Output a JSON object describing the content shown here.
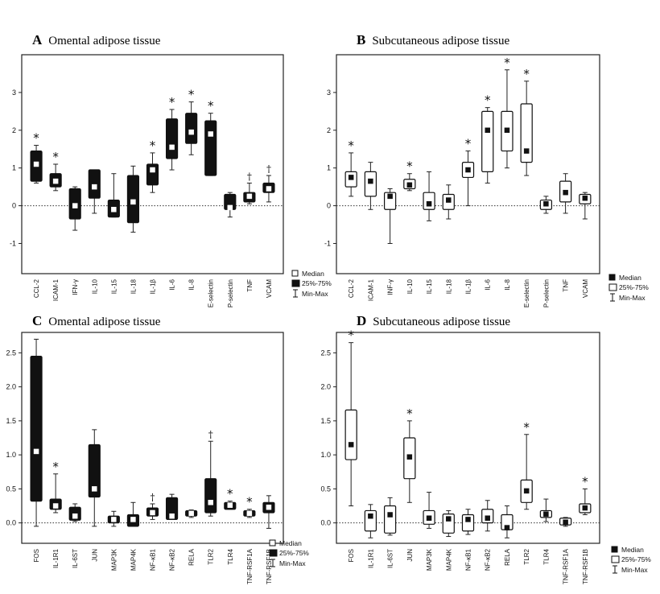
{
  "chart_data": [
    {
      "type": "box",
      "panel_label": "A",
      "title": "Omental adipose tissue",
      "y_ticks": [
        "-1",
        "0",
        "1",
        "2",
        "3"
      ],
      "ylim": [
        -1.8,
        4.0
      ],
      "reference_line": 0,
      "box_style": "filled",
      "legend": {
        "median": "Median",
        "box": "25%-75%",
        "whisker": "Min-Max",
        "position": "bottom-right"
      },
      "categories": [
        "CCL-2",
        "ICAM-1",
        "IFN-γ",
        "IL-10",
        "IL-15",
        "IL-18",
        "IL-1β",
        "IL-6",
        "IL-8",
        "E-selectin",
        "P-selectin",
        "TNF",
        "VCAM"
      ],
      "min": [
        0.6,
        0.4,
        -0.65,
        -0.2,
        -0.3,
        -0.7,
        0.35,
        0.95,
        1.35,
        0.8,
        -0.3,
        0.05,
        0.1
      ],
      "q1": [
        0.65,
        0.5,
        -0.35,
        0.2,
        -0.3,
        -0.45,
        0.55,
        1.25,
        1.65,
        0.8,
        -0.1,
        0.1,
        0.35
      ],
      "median": [
        1.1,
        0.65,
        0.0,
        0.5,
        -0.1,
        0.1,
        0.95,
        1.55,
        1.95,
        1.9,
        -0.05,
        0.25,
        0.45
      ],
      "q3": [
        1.45,
        0.85,
        0.45,
        0.95,
        0.15,
        0.8,
        1.1,
        2.3,
        2.45,
        2.25,
        0.3,
        0.35,
        0.6
      ],
      "max": [
        1.6,
        1.1,
        0.5,
        0.95,
        0.85,
        1.05,
        1.4,
        2.55,
        2.75,
        2.45,
        0.35,
        0.6,
        0.8
      ],
      "markers": [
        "*",
        "*",
        "",
        "",
        "",
        "",
        "*",
        "*",
        "*",
        "*",
        "",
        "†",
        "†"
      ]
    },
    {
      "type": "box",
      "panel_label": "B",
      "title": "Subcutaneous adipose tissue",
      "y_ticks": [
        "-1",
        "0",
        "1",
        "2",
        "3"
      ],
      "ylim": [
        -1.8,
        4.0
      ],
      "reference_line": 0,
      "box_style": "open",
      "legend": {
        "median": "Median",
        "box": "25%-75%",
        "whisker": "Min-Max",
        "position": "bottom-right"
      },
      "categories": [
        "CCL-2",
        "ICAM-1",
        "INF-γ",
        "IL-10",
        "IL-15",
        "IL-18",
        "IL-1β",
        "IL-6",
        "IL-8",
        "E-selectin",
        "P-selectin",
        "TNF",
        "VCAM"
      ],
      "min": [
        0.25,
        -0.1,
        -1.0,
        0.4,
        -0.4,
        -0.35,
        0.0,
        0.6,
        1.0,
        0.8,
        -0.2,
        -0.2,
        -0.35
      ],
      "q1": [
        0.5,
        0.25,
        -0.1,
        0.45,
        -0.1,
        -0.1,
        0.75,
        0.9,
        1.45,
        1.15,
        -0.1,
        0.1,
        0.05
      ],
      "median": [
        0.75,
        0.65,
        0.25,
        0.55,
        0.05,
        0.15,
        0.95,
        2.0,
        2.0,
        1.45,
        0.05,
        0.35,
        0.2
      ],
      "q3": [
        0.9,
        0.9,
        0.35,
        0.7,
        0.35,
        0.3,
        1.15,
        2.5,
        2.5,
        2.7,
        0.15,
        0.65,
        0.3
      ],
      "max": [
        1.4,
        1.15,
        0.45,
        0.85,
        0.9,
        0.55,
        1.45,
        2.6,
        3.6,
        3.3,
        0.25,
        0.85,
        0.35
      ],
      "markers": [
        "*",
        "",
        "",
        "*",
        "",
        "",
        "*",
        "*",
        "*",
        "*",
        "",
        "",
        ""
      ]
    },
    {
      "type": "box",
      "panel_label": "C",
      "title": "Omental adipose tissue",
      "y_ticks": [
        "0.0",
        "0.5",
        "1.0",
        "1.5",
        "2.0",
        "2.5"
      ],
      "ylim": [
        -0.3,
        2.8
      ],
      "reference_line": 0,
      "box_style": "filled",
      "legend": {
        "median": "Median",
        "box": "25%-75%",
        "whisker": "Min-Max",
        "position": "bottom-right"
      },
      "categories": [
        "FOS",
        "IL-1R1",
        "IL-6ST",
        "JUN",
        "MAP3K",
        "MAP4K",
        "NF-κB1",
        "NF-κB2",
        "RELA",
        "TLR2",
        "TLR4",
        "TNF-RSF1A",
        "TNF-RSF1B"
      ],
      "min": [
        -0.05,
        0.15,
        0.02,
        -0.05,
        -0.05,
        -0.05,
        0.05,
        0.05,
        0.08,
        0.1,
        0.2,
        0.08,
        -0.08
      ],
      "q1": [
        0.32,
        0.2,
        0.04,
        0.38,
        0.0,
        -0.05,
        0.1,
        0.05,
        0.1,
        0.15,
        0.2,
        0.1,
        0.15
      ],
      "median": [
        1.05,
        0.25,
        0.1,
        0.5,
        0.05,
        0.05,
        0.15,
        0.1,
        0.14,
        0.3,
        0.26,
        0.14,
        0.23
      ],
      "q3": [
        2.45,
        0.35,
        0.23,
        1.15,
        0.1,
        0.12,
        0.22,
        0.37,
        0.18,
        0.65,
        0.3,
        0.18,
        0.3
      ],
      "max": [
        2.7,
        0.72,
        0.28,
        1.37,
        0.17,
        0.3,
        0.28,
        0.42,
        0.19,
        1.2,
        0.32,
        0.2,
        0.4
      ],
      "markers": [
        "",
        "*",
        "",
        "",
        "",
        "",
        "†",
        "",
        "",
        "†",
        "*",
        "*",
        ""
      ]
    },
    {
      "type": "box",
      "panel_label": "D",
      "title": "Subcutaneous adipose tissue",
      "y_ticks": [
        "0.0",
        "0.5",
        "1.0",
        "1.5",
        "2.0",
        "2.5"
      ],
      "ylim": [
        -0.3,
        2.8
      ],
      "reference_line": 0,
      "box_style": "open",
      "legend": {
        "median": "Median",
        "box": "25%-75%",
        "whisker": "Min-Max",
        "position": "bottom-right"
      },
      "categories": [
        "FOS",
        "IL-1R1",
        "IL-6ST",
        "JUN",
        "MAP3K",
        "MAP4K",
        "NF-κB1",
        "NF-κB2",
        "RELA",
        "TLR2",
        "TLR4",
        "TNF-RSF1A",
        "TNF-RSF1B"
      ],
      "min": [
        0.25,
        -0.22,
        -0.18,
        0.3,
        -0.08,
        -0.2,
        -0.17,
        -0.12,
        -0.22,
        0.2,
        0.02,
        -0.05,
        0.12
      ],
      "q1": [
        0.93,
        -0.12,
        -0.15,
        0.65,
        -0.02,
        -0.15,
        -0.12,
        0.0,
        -0.1,
        0.3,
        0.08,
        -0.03,
        0.15
      ],
      "median": [
        1.15,
        0.1,
        0.12,
        0.97,
        0.07,
        0.06,
        0.05,
        0.07,
        -0.07,
        0.47,
        0.13,
        0.01,
        0.22
      ],
      "q3": [
        1.66,
        0.18,
        0.25,
        1.25,
        0.18,
        0.13,
        0.12,
        0.2,
        0.12,
        0.63,
        0.18,
        0.07,
        0.28
      ],
      "max": [
        2.65,
        0.27,
        0.37,
        1.5,
        0.45,
        0.18,
        0.2,
        0.33,
        0.25,
        1.3,
        0.35,
        0.08,
        0.5
      ],
      "markers": [
        "*",
        "",
        "",
        "*",
        "",
        "",
        "",
        "",
        "",
        "*",
        "",
        "",
        "*"
      ]
    }
  ]
}
